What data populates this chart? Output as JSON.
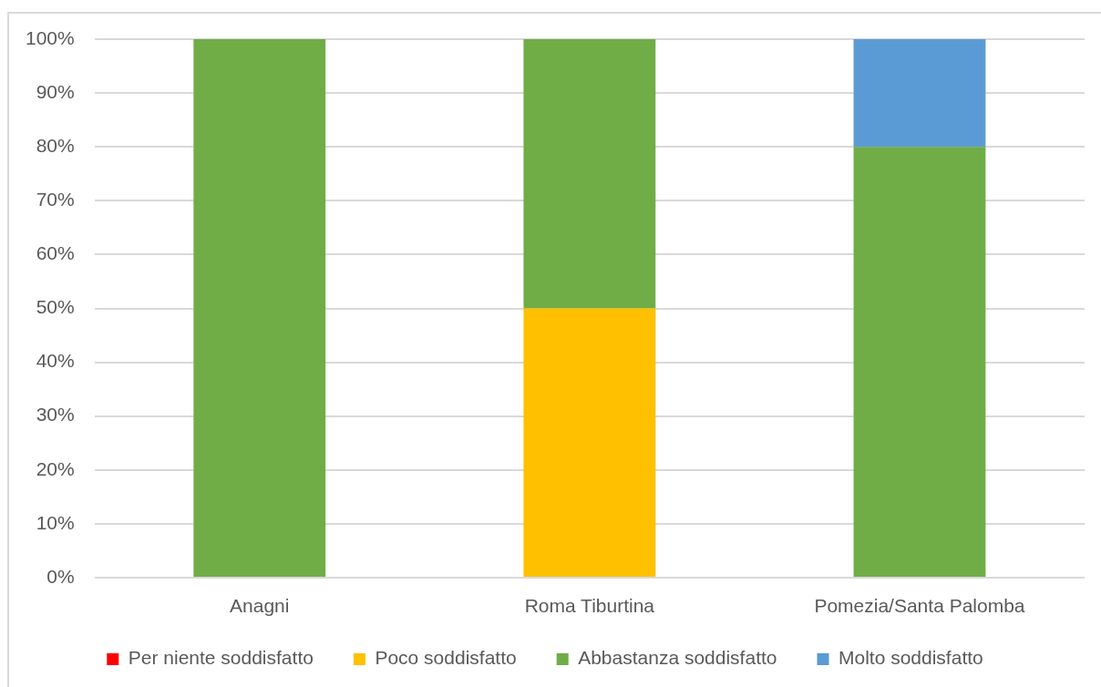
{
  "chart_data": {
    "type": "bar",
    "stacked": true,
    "categories": [
      "Anagni",
      "Roma Tiburtina",
      "Pomezia/Santa Palomba"
    ],
    "series": [
      {
        "name": "Per niente soddisfatto",
        "color": "#ff0000",
        "values": [
          0,
          0,
          0
        ]
      },
      {
        "name": "Poco soddisfatto",
        "color": "#ffc000",
        "values": [
          0,
          50,
          0
        ]
      },
      {
        "name": "Abbastanza soddisfatto",
        "color": "#70ad47",
        "values": [
          100,
          50,
          80
        ]
      },
      {
        "name": "Molto soddisfatto",
        "color": "#5b9bd5",
        "values": [
          0,
          0,
          20
        ]
      }
    ],
    "ylim": [
      0,
      100
    ],
    "yticks": [
      {
        "value": 0,
        "label": "0%"
      },
      {
        "value": 10,
        "label": "10%"
      },
      {
        "value": 20,
        "label": "20%"
      },
      {
        "value": 30,
        "label": "30%"
      },
      {
        "value": 40,
        "label": "40%"
      },
      {
        "value": 50,
        "label": "50%"
      },
      {
        "value": 60,
        "label": "60%"
      },
      {
        "value": 70,
        "label": "70%"
      },
      {
        "value": 80,
        "label": "80%"
      },
      {
        "value": 90,
        "label": "90%"
      },
      {
        "value": 100,
        "label": "100%"
      }
    ],
    "grid": "y",
    "legend": "bottom"
  }
}
